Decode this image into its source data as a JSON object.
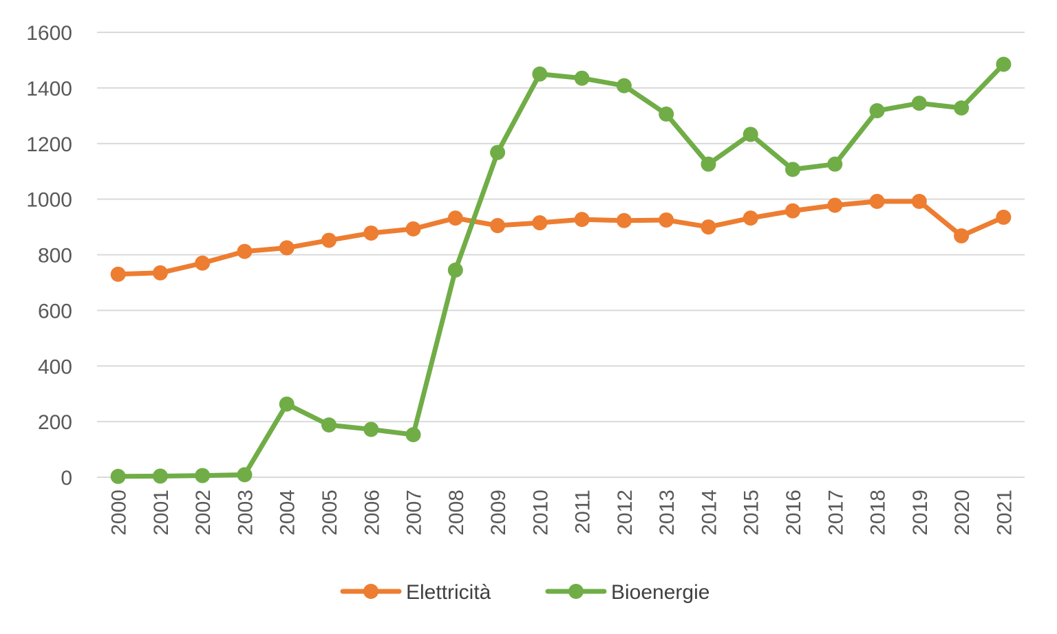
{
  "chart_data": {
    "type": "line",
    "title": "",
    "xlabel": "",
    "ylabel": "",
    "ylim": [
      0,
      1600
    ],
    "y_ticks": [
      "0",
      "200",
      "400",
      "600",
      "800",
      "1000",
      "1200",
      "1400",
      "1600"
    ],
    "grid": true,
    "legend_position": "bottom",
    "categories": [
      "2000",
      "2001",
      "2002",
      "2003",
      "2004",
      "2005",
      "2006",
      "2007",
      "2008",
      "2009",
      "2010",
      "2011",
      "2012",
      "2013",
      "2014",
      "2015",
      "2016",
      "2017",
      "2018",
      "2019",
      "2020",
      "2021"
    ],
    "series": [
      {
        "name": "Elettricità",
        "color": "#ED7D31",
        "values": [
          730,
          735,
          770,
          812,
          825,
          852,
          878,
          893,
          932,
          905,
          915,
          927,
          923,
          925,
          900,
          932,
          958,
          978,
          992,
          992,
          868,
          935
        ]
      },
      {
        "name": "Bioenergie",
        "color": "#70AD47",
        "values": [
          3,
          4,
          6,
          9,
          263,
          188,
          172,
          153,
          745,
          1168,
          1450,
          1435,
          1408,
          1306,
          1126,
          1233,
          1107,
          1126,
          1318,
          1345,
          1328,
          1485
        ]
      }
    ]
  }
}
